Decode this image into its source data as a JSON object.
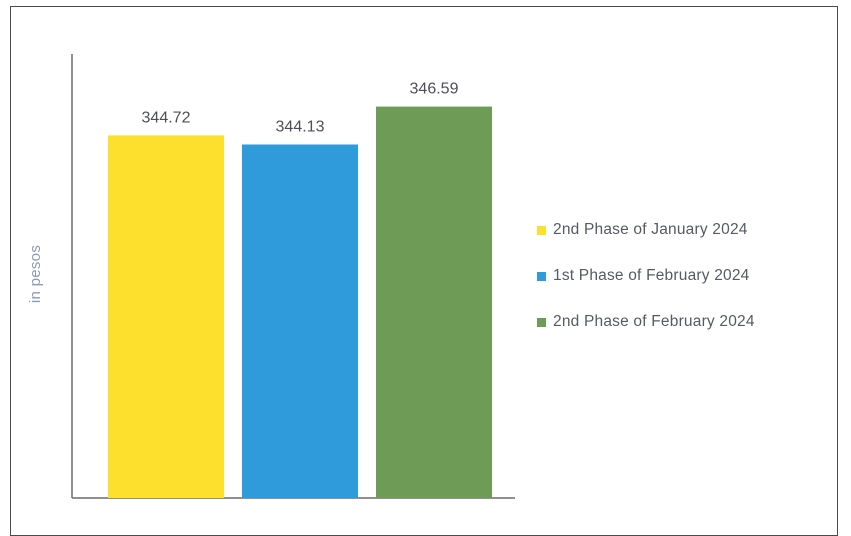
{
  "chart_data": {
    "type": "bar",
    "title": "",
    "xlabel": "",
    "ylabel": "in pesos",
    "categories": [
      "2nd Phase of January 2024",
      "1st Phase of February 2024",
      "2nd Phase of February 2024"
    ],
    "values": [
      344.72,
      344.13,
      346.59
    ],
    "value_labels": [
      "344.72",
      "344.13",
      "346.59"
    ],
    "colors": [
      "#FDE02E",
      "#2F9BDB",
      "#6E9C56"
    ],
    "ylim": [
      321.2,
      350.0
    ],
    "grid": false,
    "legend": "right",
    "legend_entries": [
      {
        "label": "2nd Phase of January 2024",
        "color": "#FDE02E"
      },
      {
        "label": "1st Phase of February 2024",
        "color": "#2F9BDB"
      },
      {
        "label": "2nd Phase of February 2024",
        "color": "#6E9C56"
      }
    ]
  }
}
